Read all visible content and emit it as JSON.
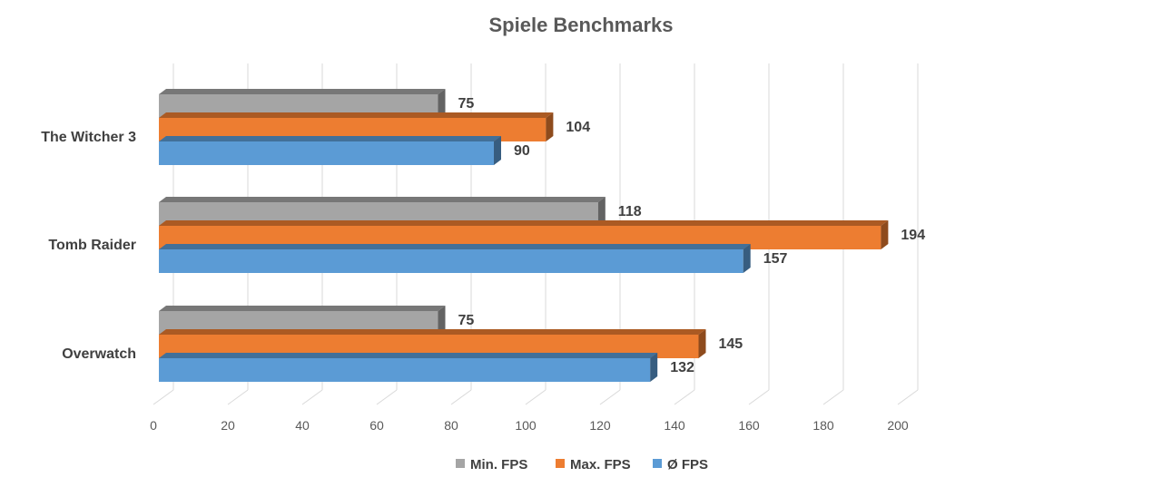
{
  "chart_data": {
    "type": "bar",
    "orientation": "horizontal",
    "style": "3d",
    "title": "Spiele Benchmarks",
    "categories": [
      "The Witcher 3",
      "Tomb Raider",
      "Overwatch"
    ],
    "series": [
      {
        "name": "Min. FPS",
        "color": "#a5a5a5",
        "values": [
          75,
          118,
          75
        ]
      },
      {
        "name": "Max. FPS",
        "color": "#ed7d31",
        "values": [
          104,
          194,
          145
        ]
      },
      {
        "name": "Ø FPS",
        "color": "#5b9bd5",
        "values": [
          90,
          157,
          132
        ]
      }
    ],
    "xlim": [
      0,
      200
    ],
    "ticks": [
      0,
      20,
      40,
      60,
      80,
      100,
      120,
      140,
      160,
      180,
      200
    ],
    "grid": true,
    "legend": "bottom"
  }
}
